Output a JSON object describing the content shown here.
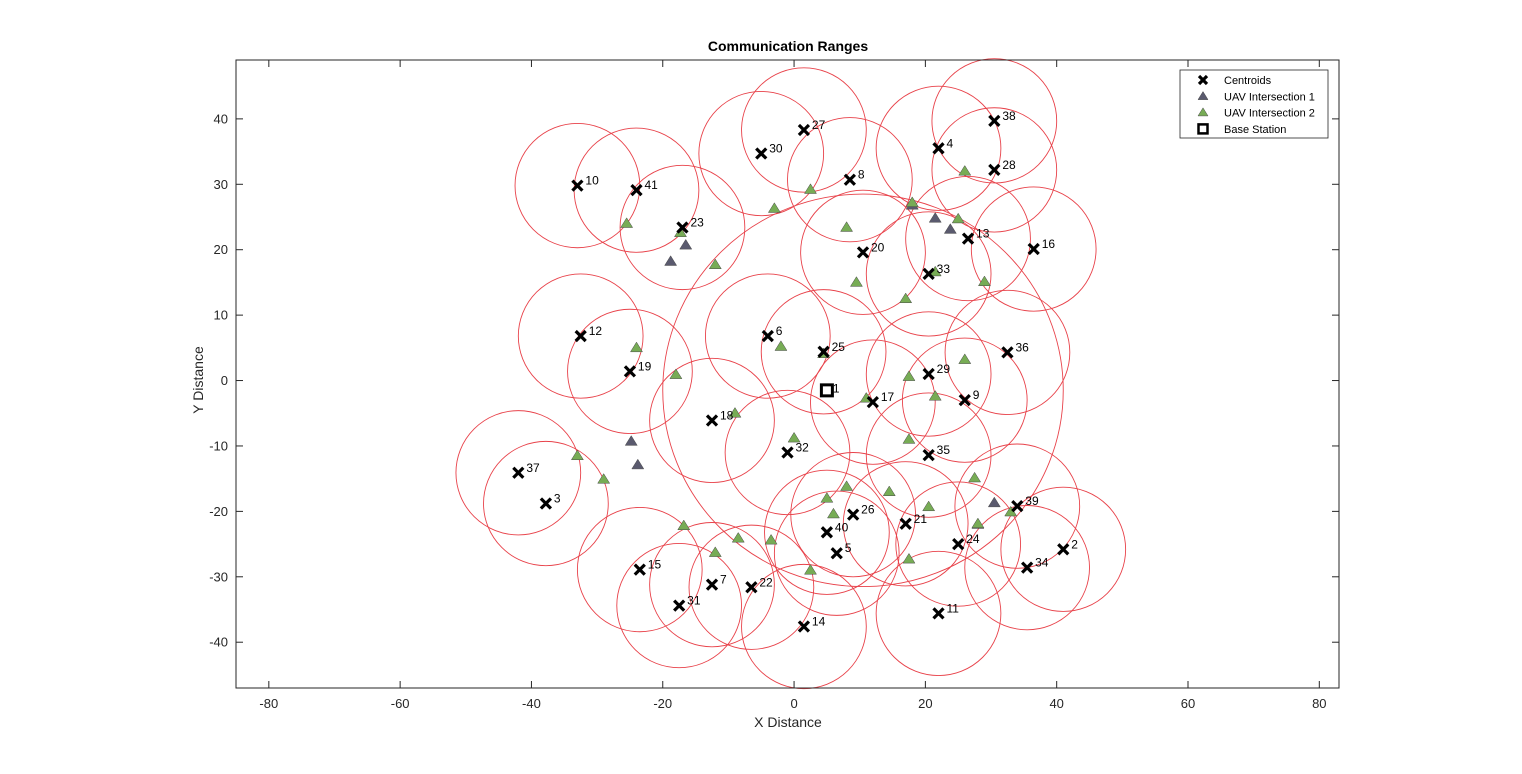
{
  "chart_data": {
    "type": "scatter",
    "title": "Communication Ranges",
    "xlabel": "X Distance",
    "ylabel": "Y Distance",
    "xlim": [
      -85,
      83
    ],
    "ylim": [
      -47,
      49
    ],
    "xticks": [
      -80,
      -60,
      -40,
      -20,
      0,
      20,
      40,
      60,
      80
    ],
    "yticks": [
      -40,
      -30,
      -20,
      -10,
      0,
      10,
      20,
      30,
      40
    ],
    "grid": false,
    "legend_position": "top-right",
    "colors": {
      "centroid": "#000000",
      "intersection1": "#5a5a6e",
      "intersection2": "#77ac55",
      "range_circle": "#e8424a",
      "axis": "#262626"
    },
    "legend": [
      {
        "label": "Centroids",
        "marker": "x"
      },
      {
        "label": "UAV Intersection 1",
        "marker": "triangle-dark"
      },
      {
        "label": "UAV Intersection 2",
        "marker": "triangle-green"
      },
      {
        "label": "Base Station",
        "marker": "square"
      }
    ],
    "range_radius": 9.5,
    "large_range": {
      "center": [
        10.5,
        -1.5
      ],
      "rx": 30.5,
      "ry": 30
    },
    "base_station": {
      "label": "1",
      "x": 5,
      "y": -1.5
    },
    "centroids": [
      {
        "id": "2",
        "x": 41,
        "y": -25.8
      },
      {
        "id": "3",
        "x": -37.8,
        "y": -18.8
      },
      {
        "id": "4",
        "x": 22,
        "y": 35.5
      },
      {
        "id": "5",
        "x": 6.5,
        "y": -26.4
      },
      {
        "id": "6",
        "x": -4,
        "y": 6.8
      },
      {
        "id": "7",
        "x": -12.5,
        "y": -31.2
      },
      {
        "id": "8",
        "x": 8.5,
        "y": 30.7
      },
      {
        "id": "9",
        "x": 26,
        "y": -3
      },
      {
        "id": "10",
        "x": -33,
        "y": 29.8
      },
      {
        "id": "11",
        "x": 22,
        "y": -35.6
      },
      {
        "id": "12",
        "x": -32.5,
        "y": 6.8
      },
      {
        "id": "13",
        "x": 26.5,
        "y": 21.7
      },
      {
        "id": "14",
        "x": 1.5,
        "y": -37.6
      },
      {
        "id": "15",
        "x": -23.5,
        "y": -28.9
      },
      {
        "id": "16",
        "x": 36.5,
        "y": 20.1
      },
      {
        "id": "17",
        "x": 12,
        "y": -3.3
      },
      {
        "id": "18",
        "x": -12.5,
        "y": -6.1
      },
      {
        "id": "19",
        "x": -25,
        "y": 1.4
      },
      {
        "id": "20",
        "x": 10.5,
        "y": 19.6
      },
      {
        "id": "21",
        "x": 17,
        "y": -21.9
      },
      {
        "id": "22",
        "x": -6.5,
        "y": -31.6
      },
      {
        "id": "23",
        "x": -17,
        "y": 23.4
      },
      {
        "id": "24",
        "x": 25,
        "y": -25
      },
      {
        "id": "25",
        "x": 4.5,
        "y": 4.4
      },
      {
        "id": "26",
        "x": 9,
        "y": -20.5
      },
      {
        "id": "27",
        "x": 1.5,
        "y": 38.3
      },
      {
        "id": "28",
        "x": 30.5,
        "y": 32.2
      },
      {
        "id": "29",
        "x": 20.5,
        "y": 1
      },
      {
        "id": "30",
        "x": -5,
        "y": 34.7
      },
      {
        "id": "31",
        "x": -17.5,
        "y": -34.4
      },
      {
        "id": "32",
        "x": -1,
        "y": -11
      },
      {
        "id": "33",
        "x": 20.5,
        "y": 16.3
      },
      {
        "id": "34",
        "x": 35.5,
        "y": -28.6
      },
      {
        "id": "35",
        "x": 20.5,
        "y": -11.4
      },
      {
        "id": "36",
        "x": 32.5,
        "y": 4.3
      },
      {
        "id": "37",
        "x": -42,
        "y": -14.1
      },
      {
        "id": "38",
        "x": 30.5,
        "y": 39.7
      },
      {
        "id": "39",
        "x": 34,
        "y": -19.2
      },
      {
        "id": "40",
        "x": 5,
        "y": -23.2
      },
      {
        "id": "41",
        "x": -24,
        "y": 29.1
      }
    ],
    "intersection1": [
      {
        "x": -18.8,
        "y": 18.2
      },
      {
        "x": -16.5,
        "y": 20.7
      },
      {
        "x": 18,
        "y": 26.8
      },
      {
        "x": 21.5,
        "y": 24.8
      },
      {
        "x": 23.8,
        "y": 23.1
      },
      {
        "x": -24.8,
        "y": -9.3
      },
      {
        "x": -23.8,
        "y": -12.9
      },
      {
        "x": 30.5,
        "y": -18.7
      },
      {
        "x": 28,
        "y": -22
      }
    ],
    "intersection2": [
      {
        "x": -25.5,
        "y": 24
      },
      {
        "x": -17.3,
        "y": 22.6
      },
      {
        "x": -12,
        "y": 17.7
      },
      {
        "x": -3,
        "y": 26.3
      },
      {
        "x": 2.5,
        "y": 29.2
      },
      {
        "x": 8,
        "y": 23.4
      },
      {
        "x": 18,
        "y": 27.2
      },
      {
        "x": 25,
        "y": 24.7
      },
      {
        "x": 26,
        "y": 32
      },
      {
        "x": 9.5,
        "y": 15
      },
      {
        "x": 17,
        "y": 12.5
      },
      {
        "x": 21.5,
        "y": 16.6
      },
      {
        "x": 29,
        "y": 15.1
      },
      {
        "x": -24,
        "y": 5
      },
      {
        "x": -18,
        "y": 0.9
      },
      {
        "x": -2,
        "y": 5.2
      },
      {
        "x": 4.5,
        "y": 4.1
      },
      {
        "x": 17.5,
        "y": 0.6
      },
      {
        "x": 26,
        "y": 3.2
      },
      {
        "x": -9,
        "y": -5
      },
      {
        "x": 11,
        "y": -2.7
      },
      {
        "x": 21.5,
        "y": -2.4
      },
      {
        "x": 0,
        "y": -8.8
      },
      {
        "x": 17.5,
        "y": -9
      },
      {
        "x": -33,
        "y": -11.5
      },
      {
        "x": -29,
        "y": -15.1
      },
      {
        "x": 27.5,
        "y": -14.9
      },
      {
        "x": 8,
        "y": -16.2
      },
      {
        "x": 14.5,
        "y": -17
      },
      {
        "x": 5,
        "y": -18
      },
      {
        "x": 6,
        "y": -20.4
      },
      {
        "x": 20.5,
        "y": -19.3
      },
      {
        "x": 33,
        "y": -20.1
      },
      {
        "x": 28,
        "y": -21.9
      },
      {
        "x": -16.8,
        "y": -22.2
      },
      {
        "x": -8.5,
        "y": -24.1
      },
      {
        "x": -3.5,
        "y": -24.4
      },
      {
        "x": -12,
        "y": -26.3
      },
      {
        "x": 2.5,
        "y": -29
      },
      {
        "x": 17.5,
        "y": -27.3
      }
    ]
  }
}
